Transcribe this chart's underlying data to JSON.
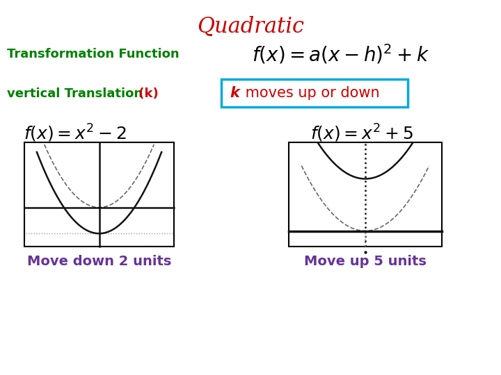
{
  "title": "Quadratic",
  "title_color": "#cc0000",
  "title_fontsize": 22,
  "bg_color": "#ffffff",
  "tf_label": "Transformation Function",
  "tf_label_color": "#008000",
  "tf_formula": "$f(x)=a\\left(x-h\\right)^{2}+k$",
  "vt_label_green": "vertical Translation",
  "vt_label_k": " (k)",
  "vt_label_color": "#008000",
  "vt_k_color": "#cc0000",
  "box_text_k": "k",
  "box_text_rest": " moves up or down",
  "box_text_color_k": "#cc0000",
  "box_text_color_rest": "#cc0000",
  "box_edge_color": "#00aadd",
  "formula_left": "$f(x)=x^{2}-2$",
  "formula_right": "$f(x)=x^{2}+5$",
  "caption_left": "Move down 2 units",
  "caption_right": "Move up 5 units",
  "caption_color": "#663399",
  "parabola_color": "#111111",
  "dotted_color": "#999999",
  "axis_color": "#111111"
}
